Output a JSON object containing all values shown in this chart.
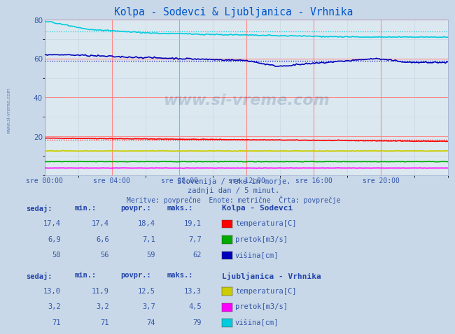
{
  "title": "Kolpa - Sodevci & Ljubljanica - Vrhnika",
  "title_color": "#0055cc",
  "bg_color": "#c8d8e8",
  "plot_bg_color": "#dce8f0",
  "grid_color_red": "#ff8888",
  "grid_color_minor": "#bbccdd",
  "x_labels": [
    "sre 00:00",
    "sre 04:00",
    "sre 08:00",
    "sre 12:00",
    "sre 16:00",
    "sre 20:00"
  ],
  "x_ticks": [
    0,
    4,
    8,
    12,
    16,
    20
  ],
  "y_min": 0,
  "y_max": 80,
  "y_ticks": [
    20,
    40,
    60,
    80
  ],
  "subtitle1": "Slovenija / reke in morje.",
  "subtitle2": "zadnji dan / 5 minut.",
  "subtitle3": "Meritve: povprečne  Enote: metrične  Črta: povprečje",
  "watermark": "www.si-vreme.com",
  "kolpa_label": "Kolpa - Sodevci",
  "kolpa_temp_color": "#ff0000",
  "kolpa_flow_color": "#00aa00",
  "kolpa_height_color": "#0000bb",
  "kolpa_temp_sedaj": 17.4,
  "kolpa_temp_min": 17.4,
  "kolpa_temp_povpr": 18.4,
  "kolpa_temp_maks": 19.1,
  "kolpa_flow_sedaj": 6.9,
  "kolpa_flow_min": 6.6,
  "kolpa_flow_povpr": 7.1,
  "kolpa_flow_maks": 7.7,
  "kolpa_height_sedaj": 58,
  "kolpa_height_min": 56,
  "kolpa_height_povpr": 59,
  "kolpa_height_maks": 62,
  "ljub_label": "Ljubljanica - Vrhnika",
  "ljub_temp_color": "#cccc00",
  "ljub_flow_color": "#ff00ff",
  "ljub_height_color": "#00ccdd",
  "ljub_temp_sedaj": 13.0,
  "ljub_temp_min": 11.9,
  "ljub_temp_povpr": 12.5,
  "ljub_temp_maks": 13.3,
  "ljub_flow_sedaj": 3.2,
  "ljub_flow_min": 3.2,
  "ljub_flow_povpr": 3.7,
  "ljub_flow_maks": 4.5,
  "ljub_height_sedaj": 71,
  "ljub_height_min": 71,
  "ljub_height_povpr": 74,
  "ljub_height_maks": 79,
  "n_points": 288,
  "hours": 24,
  "text_color": "#3355aa",
  "header_color": "#2244aa"
}
